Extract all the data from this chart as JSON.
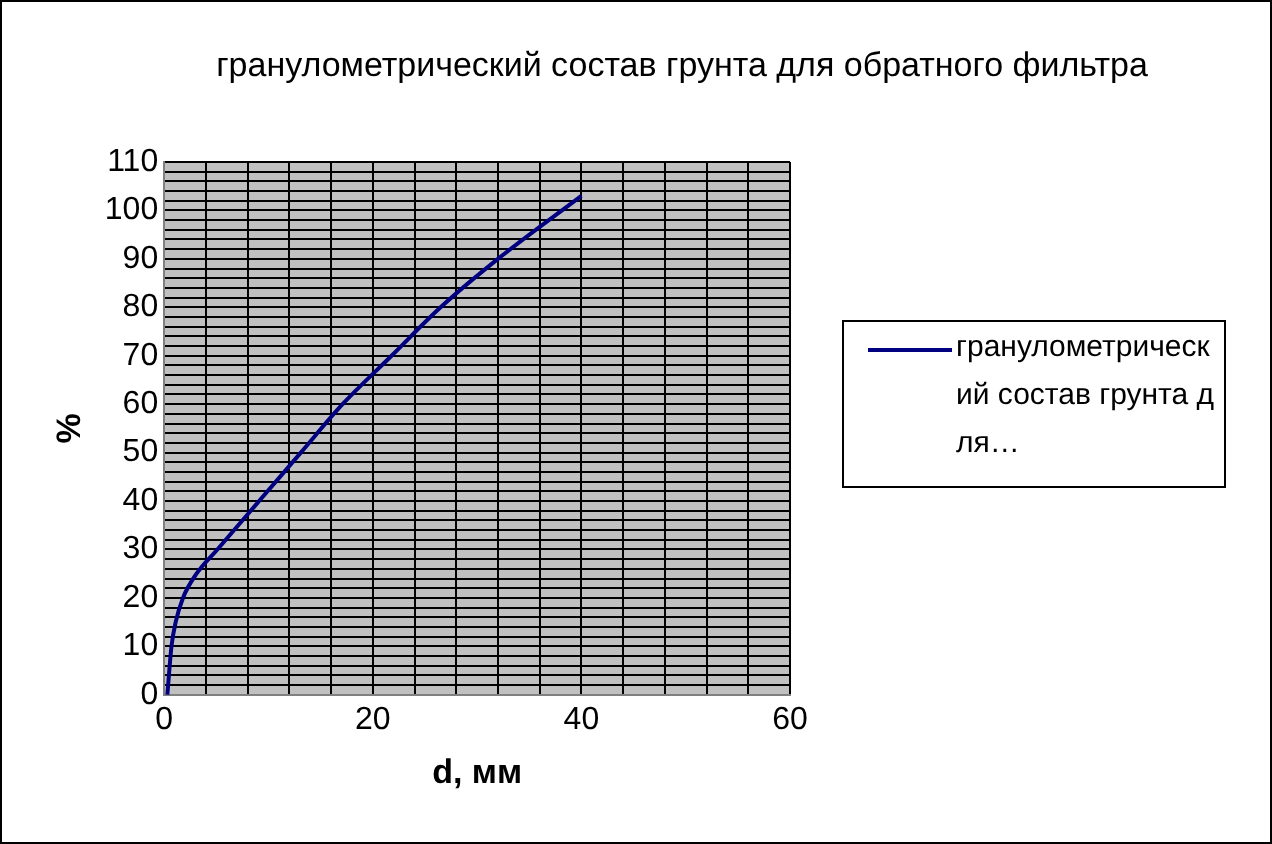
{
  "chart_data": {
    "type": "line",
    "title": "гранулометрический состав грунта для обратного фильтра",
    "xlabel": "d, мм",
    "ylabel": "%",
    "x": [
      0.3,
      0.7,
      1.1,
      1.8,
      3.1,
      5.1,
      9.1,
      13.1,
      17.1,
      21.8,
      26.5,
      32,
      40
    ],
    "series": [
      {
        "name": "гранулометрический состав грунта для…",
        "color": "#000080",
        "values": [
          0,
          10,
          15,
          20,
          25,
          30,
          40,
          50,
          60,
          70,
          80,
          90,
          103
        ]
      }
    ],
    "xlim": [
      0,
      60
    ],
    "xticks": [
      0,
      {
        "value": 4,
        "label": null
      },
      {
        "value": 8,
        "label": null
      },
      {
        "value": 12,
        "label": null
      },
      {
        "value": 16,
        "label": null
      },
      20,
      {
        "value": 24,
        "label": null
      },
      {
        "value": 28,
        "label": null
      },
      {
        "value": 32,
        "label": null
      },
      {
        "value": 36,
        "label": null
      },
      40,
      {
        "value": 44,
        "label": null
      },
      {
        "value": 48,
        "label": null
      },
      {
        "value": 52,
        "label": null
      },
      {
        "value": 56,
        "label": null
      },
      60
    ],
    "ylim": [
      0,
      110
    ],
    "yticks": [
      0,
      {
        "value": 2,
        "label": null
      },
      {
        "value": 4,
        "label": null
      },
      {
        "value": 6,
        "label": null
      },
      {
        "value": 8,
        "label": null
      },
      10,
      {
        "value": 12,
        "label": null
      },
      {
        "value": 14,
        "label": null
      },
      {
        "value": 16,
        "label": null
      },
      {
        "value": 18,
        "label": null
      },
      20,
      {
        "value": 22,
        "label": null
      },
      {
        "value": 24,
        "label": null
      },
      {
        "value": 26,
        "label": null
      },
      {
        "value": 28,
        "label": null
      },
      30,
      {
        "value": 32,
        "label": null
      },
      {
        "value": 34,
        "label": null
      },
      {
        "value": 36,
        "label": null
      },
      {
        "value": 38,
        "label": null
      },
      40,
      {
        "value": 42,
        "label": null
      },
      {
        "value": 44,
        "label": null
      },
      {
        "value": 46,
        "label": null
      },
      {
        "value": 48,
        "label": null
      },
      50,
      {
        "value": 52,
        "label": null
      },
      {
        "value": 54,
        "label": null
      },
      {
        "value": 56,
        "label": null
      },
      {
        "value": 58,
        "label": null
      },
      60,
      {
        "value": 62,
        "label": null
      },
      {
        "value": 64,
        "label": null
      },
      {
        "value": 66,
        "label": null
      },
      {
        "value": 68,
        "label": null
      },
      70,
      {
        "value": 72,
        "label": null
      },
      {
        "value": 74,
        "label": null
      },
      {
        "value": 76,
        "label": null
      },
      {
        "value": 78,
        "label": null
      },
      80,
      {
        "value": 82,
        "label": null
      },
      {
        "value": 84,
        "label": null
      },
      {
        "value": 86,
        "label": null
      },
      {
        "value": 88,
        "label": null
      },
      90,
      {
        "value": 92,
        "label": null
      },
      {
        "value": 94,
        "label": null
      },
      {
        "value": 96,
        "label": null
      },
      {
        "value": 98,
        "label": null
      },
      100,
      {
        "value": 102,
        "label": null
      },
      {
        "value": 104,
        "label": null
      },
      {
        "value": 106,
        "label": null
      },
      {
        "value": 108,
        "label": null
      },
      110
    ],
    "grid": true,
    "legend": "right",
    "marker": "none",
    "line_style": "solid"
  }
}
